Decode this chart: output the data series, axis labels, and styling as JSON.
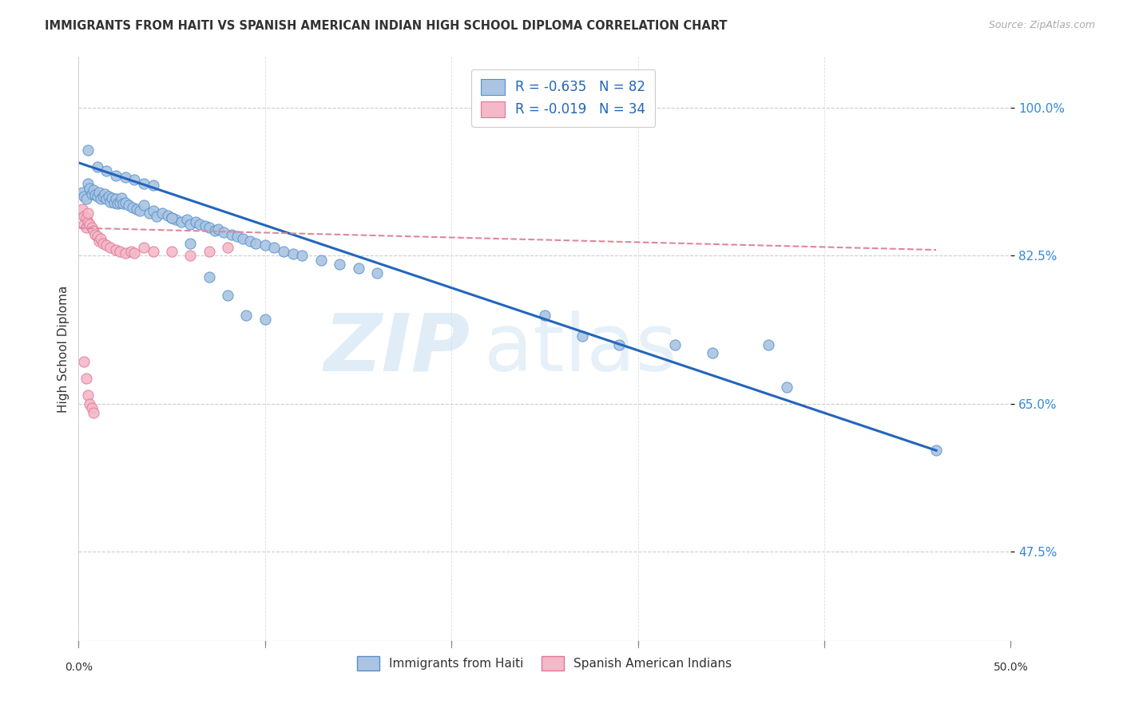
{
  "title": "IMMIGRANTS FROM HAITI VS SPANISH AMERICAN INDIAN HIGH SCHOOL DIPLOMA CORRELATION CHART",
  "source": "Source: ZipAtlas.com",
  "ylabel": "High School Diploma",
  "legend_label_blue": "Immigrants from Haiti",
  "legend_label_pink": "Spanish American Indians",
  "blue_color": "#aac4e2",
  "blue_edge_color": "#5590cc",
  "blue_line_color": "#2266bb",
  "pink_color": "#f5b8c8",
  "pink_edge_color": "#dd7799",
  "pink_line_color": "#dd8899",
  "watermark_zip": "ZIP",
  "watermark_atlas": "atlas",
  "xlim": [
    0.0,
    0.5
  ],
  "ylim": [
    0.37,
    1.06
  ],
  "yticks": [
    1.0,
    0.825,
    0.65,
    0.475
  ],
  "ytick_labels": [
    "100.0%",
    "82.5%",
    "65.0%",
    "47.5%"
  ],
  "xtick_positions": [
    0.0,
    0.1,
    0.2,
    0.3,
    0.4,
    0.5
  ],
  "blue_scatter_x": [
    0.002,
    0.003,
    0.004,
    0.005,
    0.006,
    0.007,
    0.008,
    0.009,
    0.01,
    0.011,
    0.012,
    0.013,
    0.014,
    0.015,
    0.016,
    0.017,
    0.018,
    0.019,
    0.02,
    0.021,
    0.022,
    0.023,
    0.024,
    0.025,
    0.027,
    0.029,
    0.031,
    0.033,
    0.035,
    0.038,
    0.04,
    0.042,
    0.045,
    0.048,
    0.05,
    0.052,
    0.055,
    0.058,
    0.06,
    0.063,
    0.065,
    0.068,
    0.07,
    0.073,
    0.075,
    0.078,
    0.082,
    0.085,
    0.088,
    0.092,
    0.095,
    0.1,
    0.105,
    0.11,
    0.115,
    0.12,
    0.13,
    0.14,
    0.15,
    0.16,
    0.005,
    0.01,
    0.015,
    0.02,
    0.025,
    0.03,
    0.035,
    0.04,
    0.05,
    0.06,
    0.07,
    0.08,
    0.09,
    0.1,
    0.25,
    0.27,
    0.29,
    0.32,
    0.34,
    0.37,
    0.46,
    0.38
  ],
  "blue_scatter_y": [
    0.9,
    0.895,
    0.892,
    0.91,
    0.905,
    0.898,
    0.903,
    0.897,
    0.895,
    0.9,
    0.892,
    0.895,
    0.898,
    0.892,
    0.895,
    0.889,
    0.893,
    0.888,
    0.892,
    0.887,
    0.888,
    0.893,
    0.887,
    0.888,
    0.885,
    0.882,
    0.88,
    0.878,
    0.885,
    0.875,
    0.878,
    0.872,
    0.875,
    0.873,
    0.87,
    0.868,
    0.865,
    0.868,
    0.862,
    0.865,
    0.862,
    0.86,
    0.858,
    0.855,
    0.857,
    0.853,
    0.85,
    0.848,
    0.845,
    0.842,
    0.84,
    0.838,
    0.835,
    0.83,
    0.827,
    0.825,
    0.82,
    0.815,
    0.81,
    0.805,
    0.95,
    0.93,
    0.925,
    0.92,
    0.918,
    0.915,
    0.91,
    0.908,
    0.87,
    0.84,
    0.8,
    0.778,
    0.755,
    0.75,
    0.755,
    0.73,
    0.72,
    0.72,
    0.71,
    0.72,
    0.595,
    0.67
  ],
  "pink_scatter_x": [
    0.002,
    0.003,
    0.003,
    0.004,
    0.004,
    0.005,
    0.005,
    0.006,
    0.007,
    0.008,
    0.009,
    0.01,
    0.011,
    0.012,
    0.013,
    0.015,
    0.017,
    0.02,
    0.022,
    0.025,
    0.028,
    0.03,
    0.035,
    0.04,
    0.05,
    0.06,
    0.07,
    0.08,
    0.003,
    0.004,
    0.005,
    0.006,
    0.007,
    0.008
  ],
  "pink_scatter_y": [
    0.88,
    0.872,
    0.862,
    0.87,
    0.858,
    0.865,
    0.875,
    0.862,
    0.858,
    0.855,
    0.85,
    0.848,
    0.842,
    0.845,
    0.84,
    0.838,
    0.835,
    0.832,
    0.83,
    0.828,
    0.83,
    0.828,
    0.835,
    0.83,
    0.83,
    0.825,
    0.83,
    0.835,
    0.7,
    0.68,
    0.66,
    0.65,
    0.645,
    0.64
  ],
  "blue_line_x": [
    0.0,
    0.46
  ],
  "blue_line_y": [
    0.935,
    0.595
  ],
  "pink_line_x": [
    0.0,
    0.46
  ],
  "pink_line_y": [
    0.858,
    0.832
  ],
  "legend_blue_text": "R = -0.635   N = 82",
  "legend_pink_text": "R = -0.019   N = 34"
}
